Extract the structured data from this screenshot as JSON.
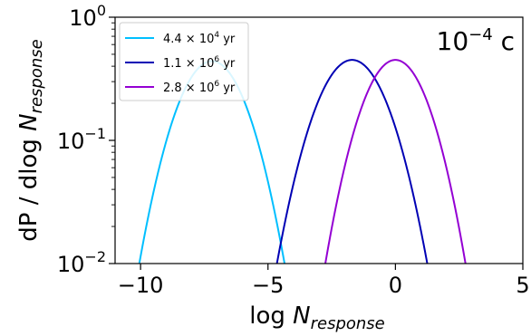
{
  "chart_data": {
    "type": "line",
    "xlabel_base": "log ",
    "xlabel_var": "N",
    "xlabel_sub": "response",
    "ylabel_base": "dP / dlog ",
    "ylabel_var": "N",
    "ylabel_sub": "response",
    "annotation_base": "10",
    "annotation_exp": "−4",
    "annotation_unit": " c",
    "xlim": [
      -11,
      5
    ],
    "ylim": [
      0.01,
      1
    ],
    "yscale": "log",
    "xticks": [
      {
        "value": -10,
        "label": "−10"
      },
      {
        "value": -5,
        "label": "−5"
      },
      {
        "value": 0,
        "label": "0"
      },
      {
        "value": 5,
        "label": "5"
      }
    ],
    "yticks": [
      {
        "value": 0.01,
        "base": "10",
        "exp": "−2"
      },
      {
        "value": 0.1,
        "base": "10",
        "exp": "−1"
      },
      {
        "value": 1,
        "base": "10",
        "exp": "0"
      }
    ],
    "legend_position": "upper-left",
    "series": [
      {
        "name": "4.4 × 10⁴ yr",
        "name_mantissa": "4.4 × 10",
        "name_exp": "4",
        "name_unit": " yr",
        "color": "#00bfff",
        "peak_x": -7.2,
        "peak_y": 0.44,
        "half_width": 2.85
      },
      {
        "name": "1.1 × 10⁶ yr",
        "name_mantissa": "1.1 × 10",
        "name_exp": "6",
        "name_unit": " yr",
        "color": "#0000b4",
        "peak_x": -1.7,
        "peak_y": 0.45,
        "half_width": 2.95
      },
      {
        "name": "2.8 × 10⁶ yr",
        "name_mantissa": "2.8 × 10",
        "name_exp": "6",
        "name_unit": " yr",
        "color": "#9400d3",
        "peak_x": 0.0,
        "peak_y": 0.45,
        "half_width": 2.75
      }
    ]
  }
}
